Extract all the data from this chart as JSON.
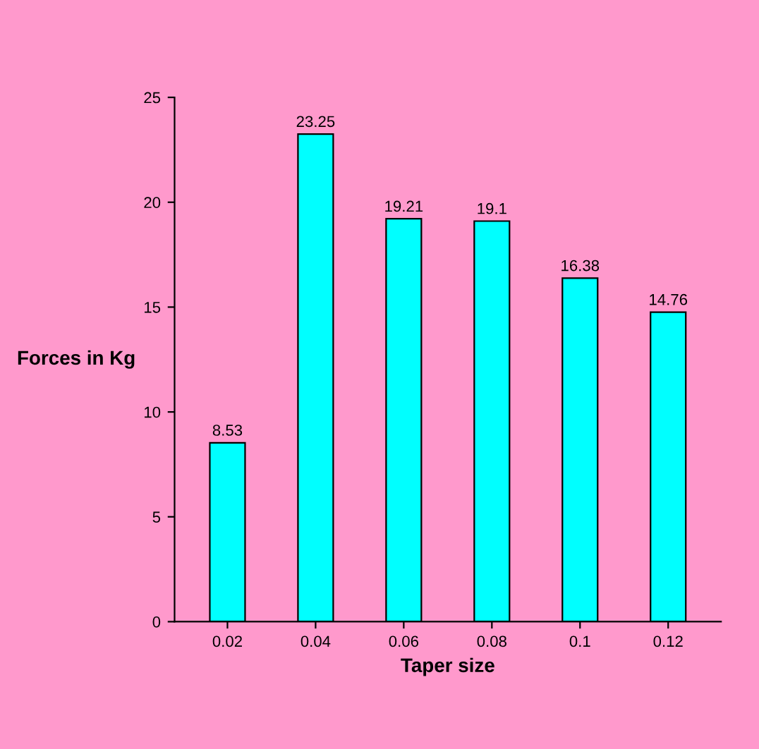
{
  "chart_data": {
    "type": "bar",
    "xlabel": "Taper size",
    "ylabel": "Forces in Kg",
    "categories": [
      "0.02",
      "0.04",
      "0.06",
      "0.08",
      "0.1",
      "0.12"
    ],
    "values": [
      8.53,
      23.25,
      19.21,
      19.1,
      16.38,
      14.76
    ],
    "color": "#00ffff",
    "ylim": [
      0,
      25
    ],
    "yticks": [
      0,
      5,
      10,
      15,
      20,
      25
    ],
    "data_labels": true,
    "grid": false
  }
}
